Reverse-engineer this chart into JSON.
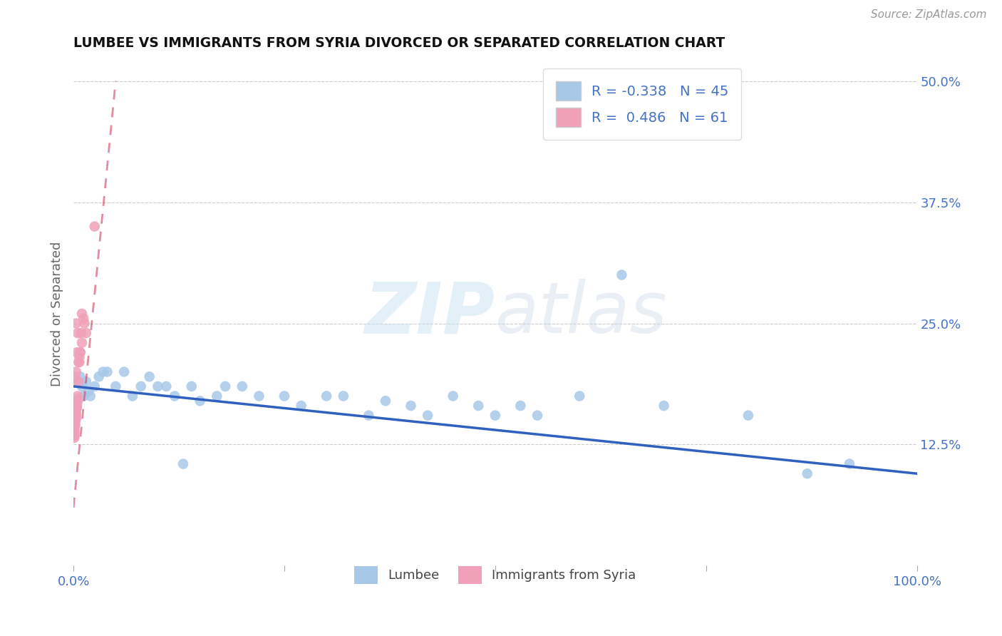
{
  "title": "LUMBEE VS IMMIGRANTS FROM SYRIA DIVORCED OR SEPARATED CORRELATION CHART",
  "source": "Source: ZipAtlas.com",
  "ylabel": "Divorced or Separated",
  "xlim": [
    0.0,
    1.0
  ],
  "ylim": [
    0.0,
    0.52
  ],
  "ytick_right_vals": [
    0.125,
    0.25,
    0.375,
    0.5
  ],
  "ytick_right_labels": [
    "12.5%",
    "25.0%",
    "37.5%",
    "50.0%"
  ],
  "watermark_zip": "ZIP",
  "watermark_atlas": "atlas",
  "lumbee_color": "#a8c8e8",
  "syria_color": "#f0a0b8",
  "lumbee_line_color": "#3060c0",
  "syria_line_color": "#d04060",
  "legend_lumbee_color": "#a8c8e8",
  "legend_syria_color": "#f0a0b8",
  "R_lumbee": -0.338,
  "N_lumbee": 45,
  "R_syria": 0.486,
  "N_syria": 61,
  "lumbee_line_x0": 0.0,
  "lumbee_line_y0": 0.185,
  "lumbee_line_x1": 1.0,
  "lumbee_line_y1": 0.095,
  "syria_line_x0": 0.0,
  "syria_line_y0": 0.06,
  "syria_line_x1": 0.05,
  "syria_line_y1": 0.5,
  "lumbee_scatter_x": [
    0.005,
    0.008,
    0.01,
    0.012,
    0.015,
    0.018,
    0.02,
    0.025,
    0.03,
    0.035,
    0.04,
    0.05,
    0.06,
    0.07,
    0.08,
    0.09,
    0.1,
    0.11,
    0.12,
    0.13,
    0.14,
    0.15,
    0.17,
    0.18,
    0.2,
    0.22,
    0.25,
    0.27,
    0.3,
    0.32,
    0.35,
    0.37,
    0.4,
    0.42,
    0.45,
    0.48,
    0.5,
    0.53,
    0.55,
    0.6,
    0.65,
    0.7,
    0.8,
    0.87,
    0.92
  ],
  "lumbee_scatter_y": [
    0.19,
    0.195,
    0.185,
    0.175,
    0.19,
    0.18,
    0.175,
    0.185,
    0.195,
    0.2,
    0.2,
    0.185,
    0.2,
    0.175,
    0.185,
    0.195,
    0.185,
    0.185,
    0.175,
    0.105,
    0.185,
    0.17,
    0.175,
    0.185,
    0.185,
    0.175,
    0.175,
    0.165,
    0.175,
    0.175,
    0.155,
    0.17,
    0.165,
    0.155,
    0.175,
    0.165,
    0.155,
    0.165,
    0.155,
    0.175,
    0.3,
    0.165,
    0.155,
    0.095,
    0.105
  ],
  "syria_scatter_x": [
    0.001,
    0.001,
    0.001,
    0.001,
    0.001,
    0.001,
    0.001,
    0.001,
    0.001,
    0.001,
    0.001,
    0.001,
    0.001,
    0.001,
    0.001,
    0.001,
    0.001,
    0.001,
    0.001,
    0.001,
    0.002,
    0.002,
    0.002,
    0.002,
    0.002,
    0.002,
    0.002,
    0.002,
    0.002,
    0.002,
    0.003,
    0.003,
    0.003,
    0.003,
    0.003,
    0.003,
    0.004,
    0.004,
    0.004,
    0.004,
    0.005,
    0.005,
    0.005,
    0.006,
    0.007,
    0.008,
    0.009,
    0.01,
    0.012,
    0.015,
    0.002,
    0.003,
    0.004,
    0.005,
    0.006,
    0.007,
    0.008,
    0.01,
    0.013,
    0.025,
    0.003
  ],
  "syria_scatter_y": [
    0.155,
    0.158,
    0.157,
    0.156,
    0.155,
    0.154,
    0.153,
    0.152,
    0.151,
    0.15,
    0.148,
    0.147,
    0.145,
    0.143,
    0.142,
    0.14,
    0.138,
    0.136,
    0.134,
    0.132,
    0.155,
    0.16,
    0.158,
    0.157,
    0.155,
    0.153,
    0.151,
    0.15,
    0.148,
    0.145,
    0.165,
    0.162,
    0.16,
    0.158,
    0.155,
    0.152,
    0.17,
    0.168,
    0.165,
    0.163,
    0.175,
    0.172,
    0.17,
    0.19,
    0.21,
    0.22,
    0.24,
    0.26,
    0.255,
    0.24,
    0.195,
    0.2,
    0.22,
    0.24,
    0.21,
    0.215,
    0.22,
    0.23,
    0.25,
    0.35,
    0.25
  ]
}
